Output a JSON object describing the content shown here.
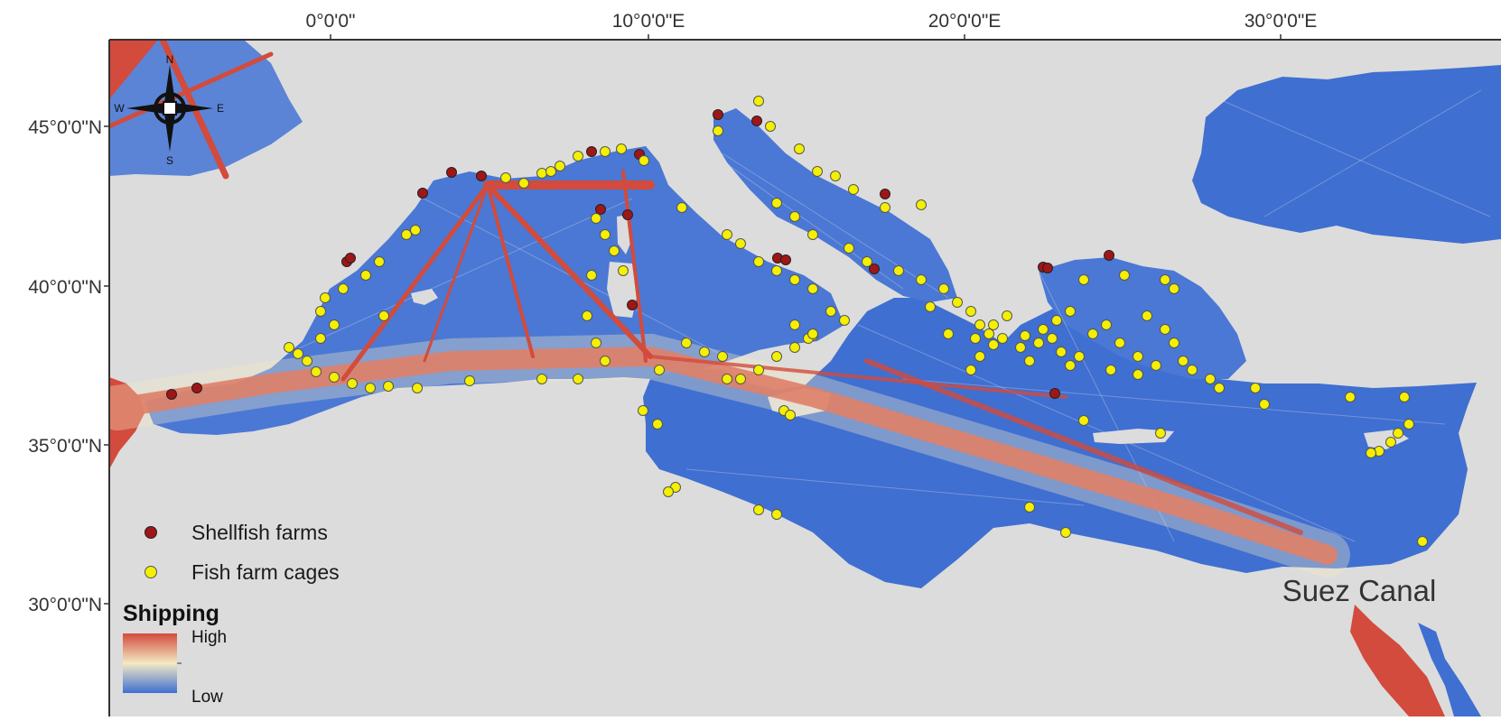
{
  "map": {
    "lon_ticks": [
      "0°0'0\"",
      "10°0'0\"E",
      "20°0'0\"E",
      "30°0'0\"E"
    ],
    "lat_ticks": [
      "45°0'0\"N",
      "40°0'0\"N",
      "35°0'0\"N",
      "30°0'0\"N"
    ],
    "place_label": "Suez Canal",
    "compass": {
      "n": "N",
      "s": "S",
      "e": "E",
      "w": "W"
    }
  },
  "legend": {
    "shellfish_label": "Shellfish farms",
    "fish_cage_label": "Fish farm cages",
    "shipping_title": "Shipping",
    "high_label": "High",
    "low_label": "Low"
  },
  "colors": {
    "land": "#dcdcdc",
    "sea_low": "#3f6fd1",
    "shipping_high": "#d24b3c",
    "shipping_mid": "#f3e9c4",
    "shellfish": "#a01616",
    "fish_cage": "#f4f000"
  }
}
